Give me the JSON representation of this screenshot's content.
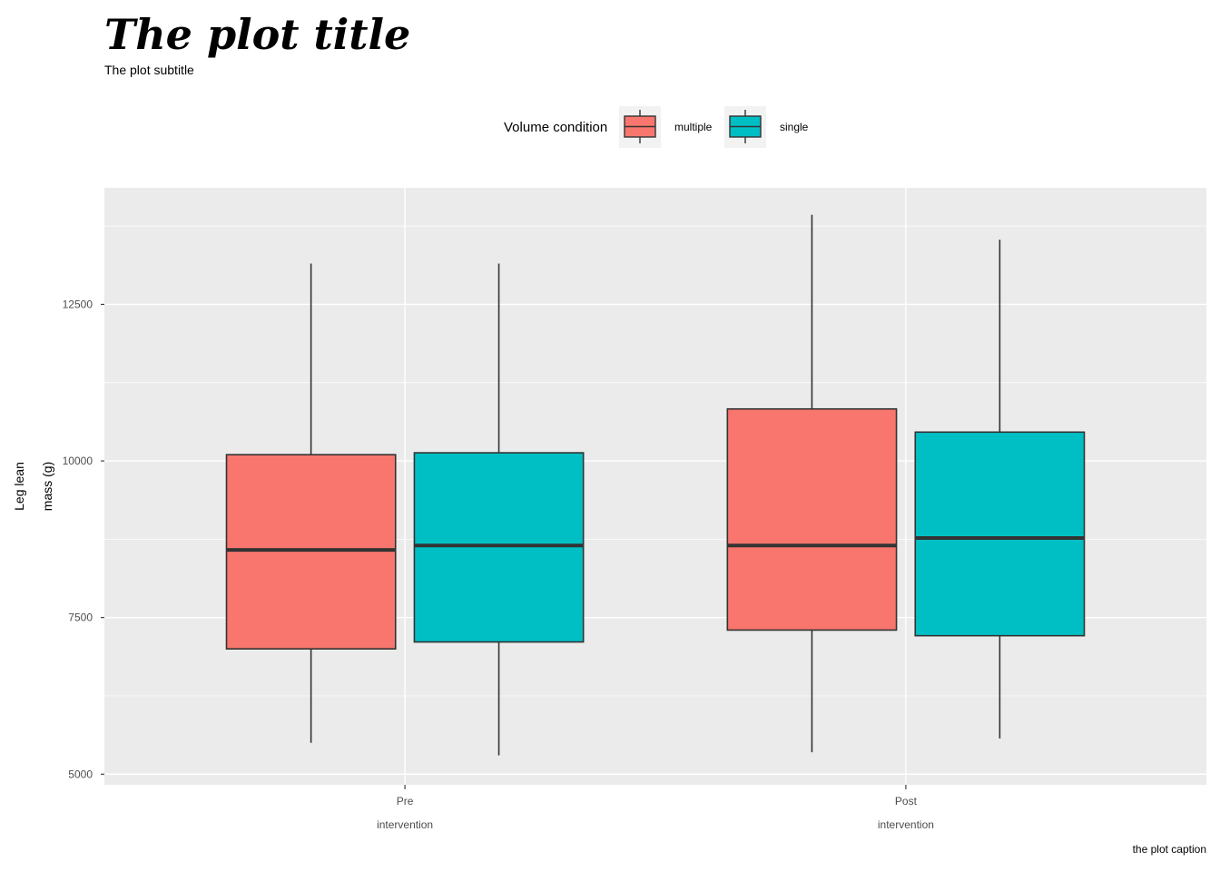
{
  "chart_data": {
    "type": "boxplot",
    "title": "The plot title",
    "subtitle": "The plot subtitle",
    "caption": "the plot caption",
    "ylabel_lines": [
      "Leg lean",
      "mass (g)"
    ],
    "categories": [
      "Pre",
      "Post"
    ],
    "category_sublabel": "intervention",
    "ylim": [
      4830,
      14360
    ],
    "yticks": [
      5000,
      7500,
      10000,
      12500
    ],
    "ytick_labels": [
      "5000",
      "7500",
      "10000",
      "12500"
    ],
    "grid": true,
    "legend": {
      "title": "Volume condition",
      "position": "top",
      "entries": [
        {
          "label": "multiple",
          "color": "#F8766D"
        },
        {
          "label": "single",
          "color": "#00BFC4"
        }
      ]
    },
    "series": [
      {
        "name": "multiple",
        "color": "#F8766D",
        "boxes": [
          {
            "category": "Pre",
            "min": 5500,
            "q1": 7000,
            "median": 8580,
            "q3": 10100,
            "max": 13150
          },
          {
            "category": "Post",
            "min": 5350,
            "q1": 7300,
            "median": 8650,
            "q3": 10830,
            "max": 13930
          }
        ]
      },
      {
        "name": "single",
        "color": "#00BFC4",
        "boxes": [
          {
            "category": "Pre",
            "min": 5300,
            "q1": 7110,
            "median": 8650,
            "q3": 10130,
            "max": 13150
          },
          {
            "category": "Post",
            "min": 5570,
            "q1": 7210,
            "median": 8770,
            "q3": 10460,
            "max": 13530
          }
        ]
      }
    ]
  }
}
